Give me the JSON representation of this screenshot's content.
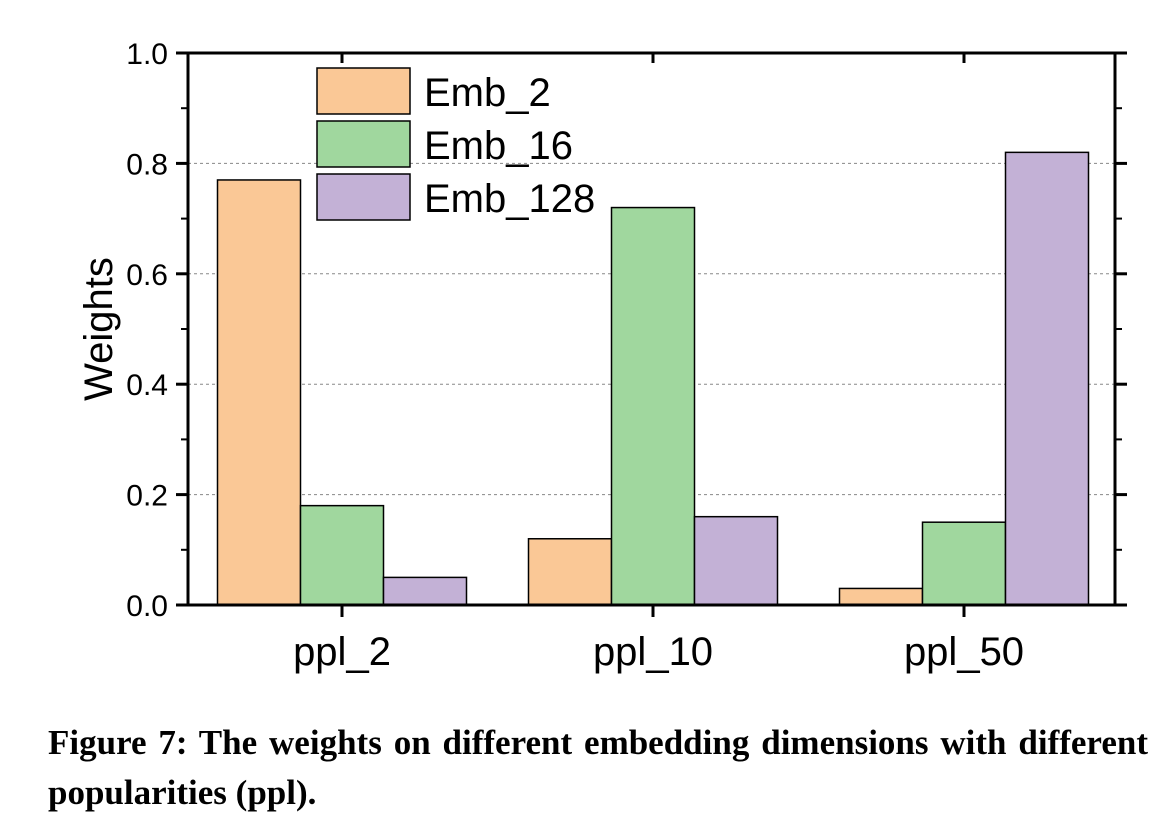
{
  "chart_data": {
    "type": "bar",
    "title": "",
    "xlabel": "",
    "ylabel": "Weights",
    "ylim": [
      0,
      1.0
    ],
    "yticks": [
      "0.0",
      "0.2",
      "0.4",
      "0.6",
      "0.8",
      "1.0"
    ],
    "grid": "horizontal dotted at major ticks",
    "legend_position": "top-left",
    "categories": [
      "ppl_2",
      "ppl_10",
      "ppl_50"
    ],
    "series": [
      {
        "name": "Emb_2",
        "color": "#FAC896",
        "values": [
          0.77,
          0.12,
          0.03
        ]
      },
      {
        "name": "Emb_16",
        "color": "#A0D79E",
        "values": [
          0.18,
          0.72,
          0.15
        ]
      },
      {
        "name": "Emb_128",
        "color": "#C3B1D6",
        "values": [
          0.05,
          0.16,
          0.82
        ]
      }
    ]
  },
  "caption": "Figure 7: The weights on different embedding dimensions with different popularities (ppl)."
}
